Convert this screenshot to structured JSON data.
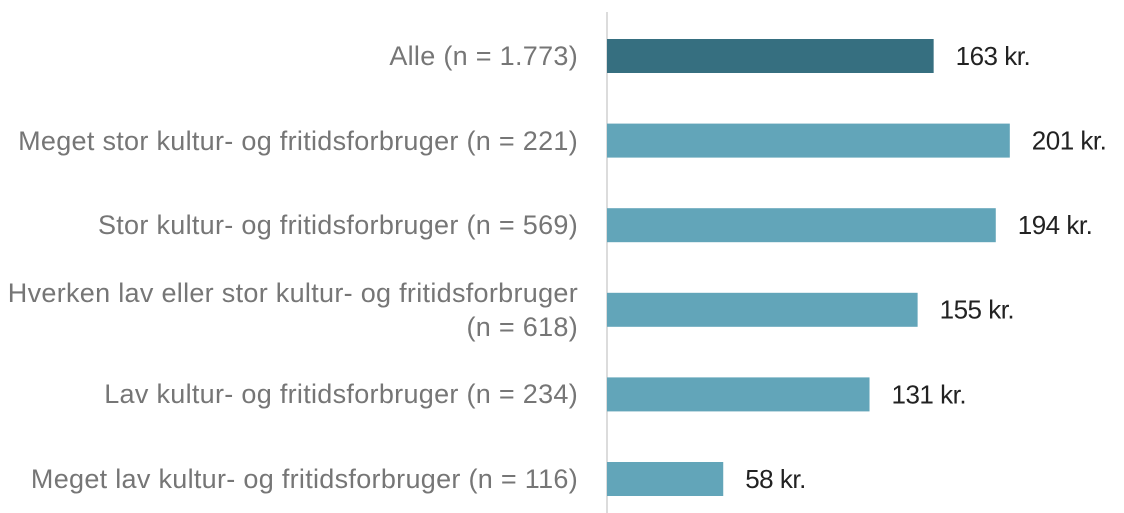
{
  "chart_data": {
    "type": "bar",
    "orientation": "horizontal",
    "categories": [
      "Alle (n = 1.773)",
      "Meget stor kultur- og fritidsforbruger (n = 221)",
      "Stor kultur- og fritidsforbruger (n = 569)",
      "Hverken lav eller stor kultur- og fritidsforbruger (n = 618)",
      "Lav kultur- og fritidsforbruger (n = 234)",
      "Meget lav kultur- og fritidsforbruger (n = 116)"
    ],
    "values": [
      163,
      201,
      194,
      155,
      131,
      58
    ],
    "value_labels": [
      "163 kr.",
      "201 kr.",
      "194 kr.",
      "155 kr.",
      "131 kr.",
      "58 kr."
    ],
    "colors": [
      "#366f80",
      "#62a5b9",
      "#62a5b9",
      "#62a5b9",
      "#62a5b9",
      "#62a5b9"
    ],
    "xlim": [
      0,
      250
    ]
  }
}
